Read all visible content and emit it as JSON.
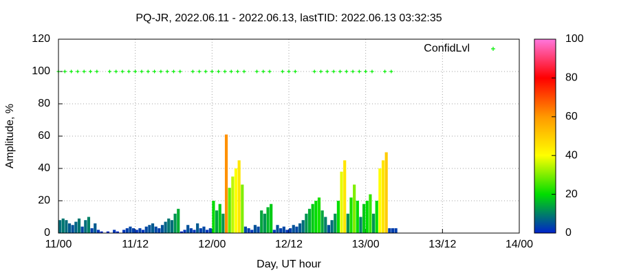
{
  "chart_data": {
    "type": "impulse",
    "title": "PQ-JR, 2022.06.11 - 2022.06.13, lastTID: 2022.06.13 03:32:35",
    "xlabel": "Day, UT hour",
    "ylabel": "Amplitude, %",
    "xlim": [
      0,
      72
    ],
    "xticks": [
      {
        "value": 0,
        "label": "11/00"
      },
      {
        "value": 12,
        "label": "11/12"
      },
      {
        "value": 24,
        "label": "12/00"
      },
      {
        "value": 36,
        "label": "12/12"
      },
      {
        "value": 48,
        "label": "13/00"
      },
      {
        "value": 60,
        "label": "13/12"
      },
      {
        "value": 72,
        "label": "14/00"
      }
    ],
    "ylim": [
      0,
      120
    ],
    "yticks": [
      0,
      20,
      40,
      60,
      80,
      100,
      120
    ],
    "grid": true,
    "colorbar": {
      "lim": [
        0,
        100
      ],
      "ticks": [
        0,
        20,
        40,
        60,
        80,
        100
      ],
      "colors": [
        "#0022cc",
        "#00dd00",
        "#ffff00",
        "#ff9900",
        "#ff0000",
        "#ff77dd"
      ]
    },
    "series": [
      {
        "kind": "impulse",
        "x": [
          0,
          0.5,
          1,
          1.5,
          2,
          2.5,
          3,
          3.5,
          4,
          4.5,
          5,
          5.5,
          6,
          6.5,
          7,
          7.5,
          8,
          8.5,
          9,
          9.5,
          10,
          10.5,
          11,
          11.5,
          12,
          12.5,
          13,
          13.5,
          14,
          14.5,
          15,
          15.5,
          16,
          16.5,
          17,
          17.5,
          18,
          18.5,
          19,
          19.5,
          20,
          20.5,
          21,
          21.5,
          22,
          22.5,
          23,
          23.5,
          24,
          24.5,
          25,
          25.5,
          26,
          26.5,
          27,
          27.5,
          28,
          28.5,
          29,
          29.5,
          30,
          30.5,
          31,
          31.5,
          32,
          32.5,
          33,
          33.5,
          34,
          34.5,
          35,
          35.5,
          36,
          36.5,
          37,
          37.5,
          38,
          38.5,
          39,
          39.5,
          40,
          40.5,
          41,
          41.5,
          42,
          42.5,
          43,
          43.5,
          44,
          44.5,
          45,
          45.5,
          46,
          46.5,
          47,
          47.5,
          48,
          48.5,
          49,
          49.5,
          50,
          50.5,
          51,
          51.5,
          52,
          52.5
        ],
        "values": [
          8,
          9,
          8,
          6,
          5,
          7,
          9,
          4,
          8,
          10,
          3,
          6,
          2,
          1,
          0,
          1,
          0,
          2,
          1,
          0,
          2,
          3,
          4,
          3,
          2,
          3,
          2,
          4,
          5,
          6,
          4,
          3,
          5,
          7,
          9,
          8,
          12,
          15,
          1,
          2,
          5,
          3,
          2,
          6,
          3,
          4,
          2,
          3,
          20,
          14,
          18,
          12,
          61,
          28,
          35,
          40,
          45,
          30,
          4,
          3,
          2,
          5,
          4,
          14,
          12,
          16,
          18,
          2,
          5,
          3,
          4,
          2,
          3,
          5,
          4,
          6,
          8,
          12,
          15,
          18,
          20,
          22,
          14,
          10,
          5,
          8,
          12,
          20,
          38,
          45,
          12,
          22,
          30,
          20,
          10,
          18,
          20,
          24,
          12,
          20,
          40,
          45,
          50,
          3,
          3,
          3
        ]
      },
      {
        "name": "ConfidLvl",
        "color": "#00ee00",
        "x": [
          0,
          1,
          2,
          3,
          4,
          5,
          6,
          8,
          9,
          10,
          11,
          12,
          13,
          14,
          15,
          16,
          17,
          18,
          19,
          21,
          22,
          23,
          24,
          25,
          26,
          27,
          28,
          29,
          31,
          32,
          33,
          35,
          36,
          37,
          40,
          41,
          42,
          43,
          44,
          45,
          46,
          47,
          48,
          49,
          51,
          52
        ],
        "values": [
          100,
          100,
          100,
          100,
          100,
          100,
          100,
          100,
          100,
          100,
          100,
          100,
          100,
          100,
          100,
          100,
          100,
          100,
          100,
          100,
          100,
          100,
          100,
          100,
          100,
          100,
          100,
          100,
          100,
          100,
          100,
          100,
          100,
          100,
          100,
          100,
          100,
          100,
          100,
          100,
          100,
          100,
          100,
          100,
          100,
          100
        ]
      }
    ]
  }
}
